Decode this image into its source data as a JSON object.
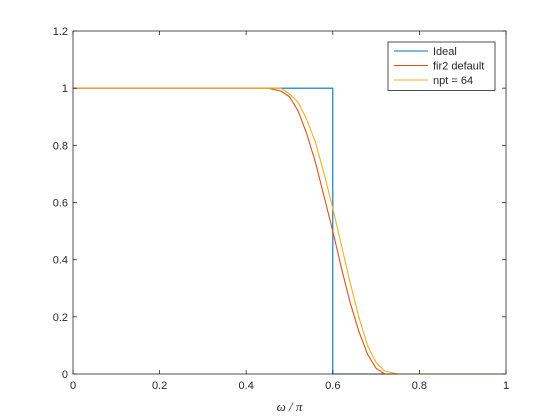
{
  "chart_data": {
    "type": "line",
    "title": "",
    "xlabel": "ω / π",
    "ylabel": "",
    "xlim": [
      0,
      1
    ],
    "ylim": [
      0,
      1.2
    ],
    "xticks": [
      0,
      0.2,
      0.4,
      0.6,
      0.8,
      1
    ],
    "xtick_labels": [
      "0",
      "0.2",
      "0.4",
      "0.6",
      "0.8",
      "1"
    ],
    "yticks": [
      0,
      0.2,
      0.4,
      0.6,
      0.8,
      1,
      1.2
    ],
    "ytick_labels": [
      "0",
      "0.2",
      "0.4",
      "0.6",
      "0.8",
      "1",
      "1.2"
    ],
    "grid": false,
    "legend_position": "top-right",
    "series": [
      {
        "name": "Ideal",
        "color": "#0072BD",
        "x": [
          0,
          0.6,
          0.6,
          1
        ],
        "y": [
          1,
          1,
          0,
          0
        ]
      },
      {
        "name": "fir2 default",
        "color": "#D95319",
        "x": [
          0,
          0.1,
          0.2,
          0.3,
          0.4,
          0.45,
          0.48,
          0.5,
          0.52,
          0.54,
          0.56,
          0.58,
          0.6,
          0.62,
          0.64,
          0.66,
          0.68,
          0.7,
          0.72,
          0.75,
          0.8,
          0.9,
          1
        ],
        "y": [
          1,
          1,
          1,
          1,
          1,
          1,
          0.99,
          0.97,
          0.92,
          0.84,
          0.74,
          0.62,
          0.5,
          0.37,
          0.25,
          0.15,
          0.07,
          0.02,
          0.0,
          0,
          0,
          0,
          0
        ]
      },
      {
        "name": "npt = 64",
        "color": "#EDB120",
        "x": [
          0,
          0.1,
          0.2,
          0.3,
          0.4,
          0.45,
          0.48,
          0.5,
          0.52,
          0.54,
          0.56,
          0.58,
          0.6,
          0.62,
          0.64,
          0.66,
          0.68,
          0.7,
          0.72,
          0.75,
          0.8,
          0.9,
          1
        ],
        "y": [
          1,
          1,
          1,
          1,
          1,
          1,
          1.0,
          0.98,
          0.95,
          0.89,
          0.81,
          0.7,
          0.58,
          0.45,
          0.32,
          0.2,
          0.1,
          0.04,
          0.01,
          0,
          0,
          0,
          0
        ]
      }
    ]
  }
}
